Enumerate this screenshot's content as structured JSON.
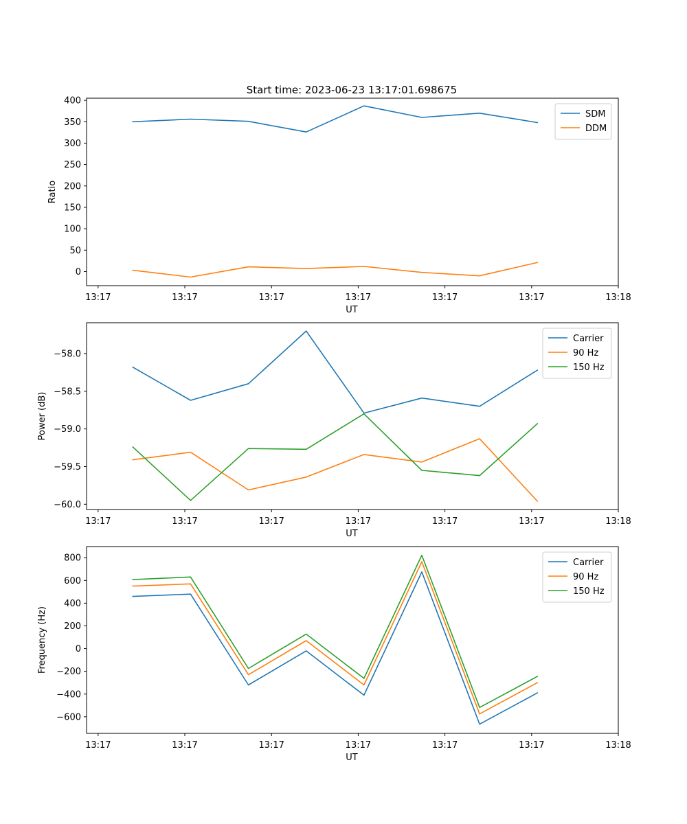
{
  "figure": {
    "title": "Start time: 2023-06-23 13:17:01.698675"
  },
  "colors": {
    "blue": "#1f77b4",
    "orange": "#ff7f0e",
    "green": "#2ca02c"
  },
  "chart_data": [
    {
      "type": "line",
      "title": "Start time: 2023-06-23 13:17:01.698675",
      "xlabel": "UT",
      "ylabel": "Ratio",
      "x": [
        1,
        2,
        3,
        4,
        5,
        6,
        7,
        8
      ],
      "xlim": [
        0.2,
        9.4
      ],
      "xticks": [
        0.4,
        1.9,
        3.4,
        4.9,
        6.4,
        7.9,
        9.4
      ],
      "xtick_labels": [
        "13:17",
        "13:17",
        "13:17",
        "13:17",
        "13:17",
        "13:17",
        "13:18"
      ],
      "ylim": [
        -33,
        405
      ],
      "yticks": [
        0,
        50,
        100,
        150,
        200,
        250,
        300,
        350,
        400
      ],
      "ytick_labels": [
        "0",
        "50",
        "100",
        "150",
        "200",
        "250",
        "300",
        "350",
        "400"
      ],
      "legend": "top-right",
      "grid": false,
      "series": [
        {
          "name": "SDM",
          "color": "#1f77b4",
          "values": [
            350,
            356,
            351,
            326,
            387,
            360,
            370,
            348
          ]
        },
        {
          "name": "DDM",
          "color": "#ff7f0e",
          "values": [
            3,
            -13,
            11,
            7,
            12,
            -2,
            -10,
            21
          ]
        }
      ]
    },
    {
      "type": "line",
      "title": "",
      "xlabel": "UT",
      "ylabel": "Power (dB)",
      "x": [
        1,
        2,
        3,
        4,
        5,
        6,
        7,
        8
      ],
      "xlim": [
        0.2,
        9.4
      ],
      "xticks": [
        0.4,
        1.9,
        3.4,
        4.9,
        6.4,
        7.9,
        9.4
      ],
      "xtick_labels": [
        "13:17",
        "13:17",
        "13:17",
        "13:17",
        "13:17",
        "13:17",
        "13:18"
      ],
      "ylim": [
        -60.07,
        -57.59
      ],
      "yticks": [
        -60.0,
        -59.5,
        -59.0,
        -58.5,
        -58.0
      ],
      "ytick_labels": [
        "−60.0",
        "−59.5",
        "−59.0",
        "−58.5",
        "−58.0"
      ],
      "legend": "top-right",
      "grid": false,
      "series": [
        {
          "name": "Carrier",
          "color": "#1f77b4",
          "values": [
            -58.18,
            -58.62,
            -58.4,
            -57.7,
            -58.79,
            -58.59,
            -58.7,
            -58.22
          ]
        },
        {
          "name": "90 Hz",
          "color": "#ff7f0e",
          "values": [
            -59.41,
            -59.31,
            -59.81,
            -59.64,
            -59.34,
            -59.44,
            -59.13,
            -59.96
          ]
        },
        {
          "name": "150 Hz",
          "color": "#2ca02c",
          "values": [
            -59.24,
            -59.95,
            -59.26,
            -59.27,
            -58.8,
            -59.55,
            -59.62,
            -58.93
          ]
        }
      ]
    },
    {
      "type": "line",
      "title": "",
      "xlabel": "UT",
      "ylabel": "Frequency (Hz)",
      "x": [
        1,
        2,
        3,
        4,
        5,
        6,
        7,
        8
      ],
      "xlim": [
        0.2,
        9.4
      ],
      "xticks": [
        0.4,
        1.9,
        3.4,
        4.9,
        6.4,
        7.9,
        9.4
      ],
      "xtick_labels": [
        "13:17",
        "13:17",
        "13:17",
        "13:17",
        "13:17",
        "13:17",
        "13:18"
      ],
      "ylim": [
        -746,
        898
      ],
      "yticks": [
        -600,
        -400,
        -200,
        0,
        200,
        400,
        600,
        800
      ],
      "ytick_labels": [
        "−600",
        "−400",
        "−200",
        "0",
        "200",
        "400",
        "600",
        "800"
      ],
      "legend": "top-right",
      "grid": false,
      "series": [
        {
          "name": "Carrier",
          "color": "#1f77b4",
          "values": [
            460,
            480,
            -320,
            -20,
            -410,
            675,
            -665,
            -390
          ]
        },
        {
          "name": "90 Hz",
          "color": "#ff7f0e",
          "values": [
            550,
            570,
            -230,
            70,
            -320,
            765,
            -575,
            -300
          ]
        },
        {
          "name": "150 Hz",
          "color": "#2ca02c",
          "values": [
            608,
            630,
            -175,
            128,
            -262,
            822,
            -518,
            -245
          ]
        }
      ]
    }
  ]
}
